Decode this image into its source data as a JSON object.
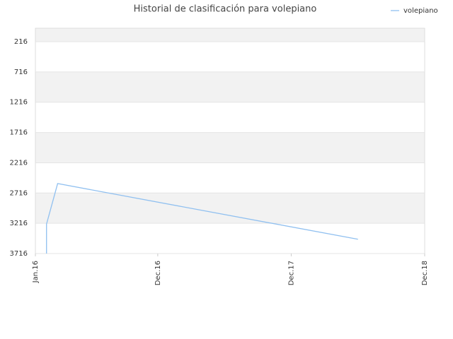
{
  "chart_data": {
    "type": "line",
    "title": "Historial de clasificación para volepiano",
    "x": [
      "2016-02",
      "2016-02",
      "2016-03",
      "2018-06"
    ],
    "series": [
      {
        "name": "volepiano",
        "color": "#90c0f0",
        "values": [
          3716,
          3230,
          2560,
          3480
        ]
      }
    ],
    "xlim": [
      "2016-01",
      "2018-12"
    ],
    "xticks": [
      {
        "value": "2016-01",
        "label": "Jan.16"
      },
      {
        "value": "2016-12",
        "label": "Dec.16"
      },
      {
        "value": "2017-12",
        "label": "Dec.17"
      },
      {
        "value": "2018-12",
        "label": "Dec.18"
      }
    ],
    "ylim": [
      3716,
      -6
    ],
    "yticks": [
      216,
      716,
      1216,
      1716,
      2216,
      2716,
      3216,
      3716
    ],
    "grid": true,
    "legend": "top-right"
  }
}
